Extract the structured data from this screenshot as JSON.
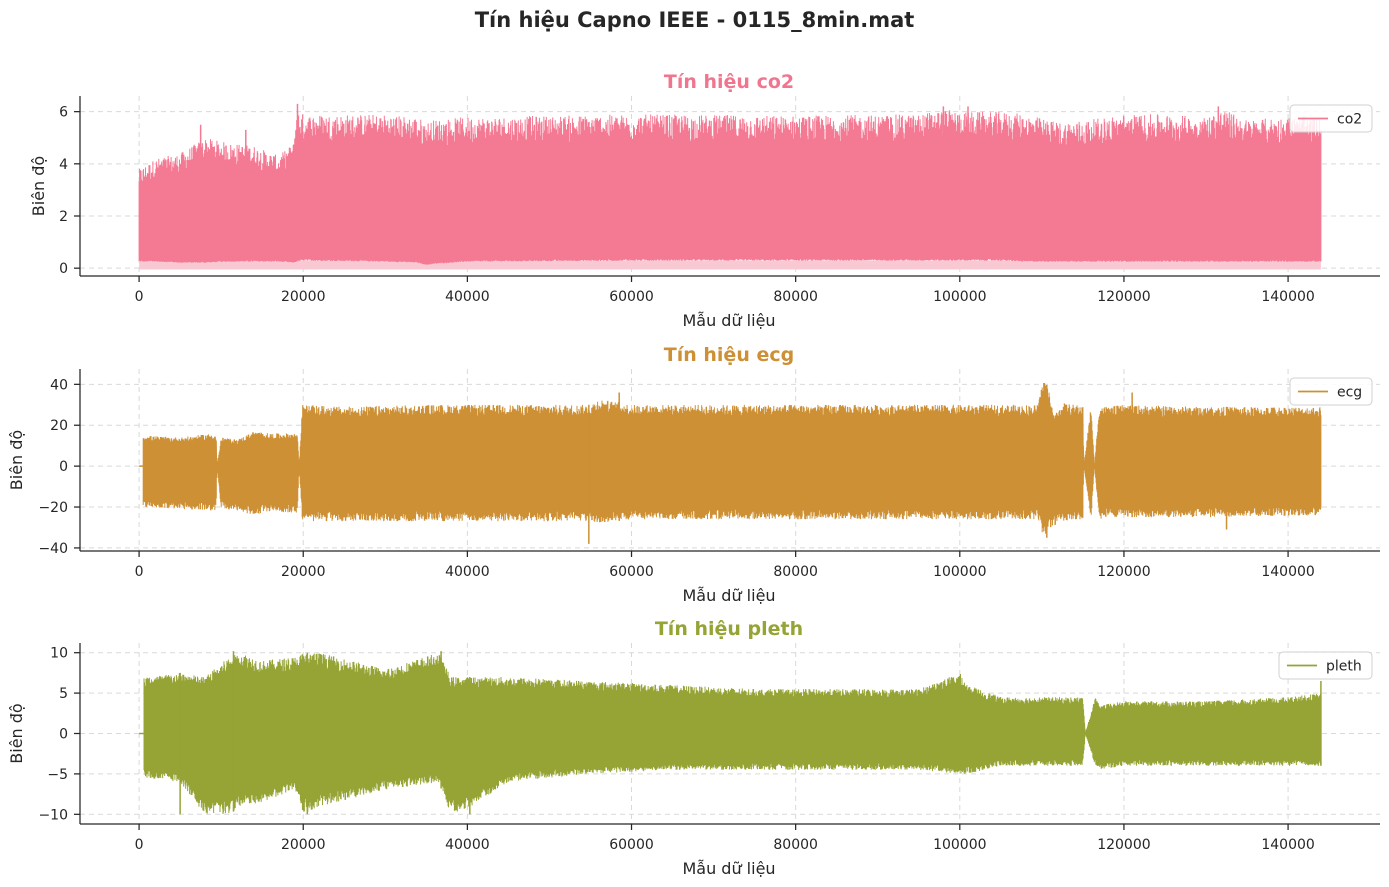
{
  "figure": {
    "title": "Tín hiệu Capno IEEE - 0115_8min.mat"
  },
  "chart_data": [
    {
      "type": "line",
      "title": "Tín hiệu co2",
      "xlabel": "Mẫu dữ liệu",
      "ylabel": "Biên độ",
      "legend": "co2",
      "legend_position": "top-right",
      "grid": true,
      "color": "#f47a94",
      "fill_color": "#f9c9d3",
      "xlim": [
        -7200,
        151200
      ],
      "ylim": [
        -0.3,
        6.6
      ],
      "xticks": [
        0,
        20000,
        40000,
        60000,
        80000,
        100000,
        120000,
        140000
      ],
      "yticks": [
        0,
        2,
        4,
        6
      ],
      "ytick_labels": [
        "0",
        "2",
        "4",
        "6"
      ],
      "x_range": [
        0,
        144000
      ],
      "envelope": {
        "x": [
          0,
          2000,
          5000,
          8000,
          11000,
          14000,
          17000,
          18800,
          19200,
          20000,
          30000,
          34000,
          35000,
          36000,
          40000,
          60000,
          80000,
          95000,
          98000,
          100000,
          105000,
          108000,
          112000,
          116000,
          120000,
          125000,
          130000,
          132000,
          135000,
          140000,
          144000
        ],
        "upper": [
          3.8,
          4.2,
          4.4,
          5.0,
          4.8,
          4.7,
          4.3,
          4.8,
          6.2,
          5.9,
          5.9,
          5.8,
          5.6,
          5.7,
          5.8,
          5.9,
          5.85,
          5.9,
          6.1,
          6.0,
          6.0,
          5.9,
          5.6,
          5.7,
          5.9,
          5.9,
          5.8,
          6.1,
          5.7,
          5.8,
          5.8
        ],
        "lower": [
          0.3,
          0.3,
          0.25,
          0.25,
          0.3,
          0.3,
          0.3,
          0.25,
          0.3,
          0.35,
          0.3,
          0.25,
          0.15,
          0.2,
          0.3,
          0.35,
          0.35,
          0.35,
          0.35,
          0.35,
          0.35,
          0.3,
          0.3,
          0.3,
          0.3,
          0.3,
          0.3,
          0.3,
          0.3,
          0.3,
          0.3
        ]
      },
      "spikes": [
        [
          19300,
          6.3
        ],
        [
          98000,
          6.2
        ],
        [
          101000,
          6.2
        ],
        [
          131500,
          6.2
        ],
        [
          7500,
          5.5
        ],
        [
          13000,
          5.3
        ]
      ]
    },
    {
      "type": "line",
      "title": "Tín hiệu ecg",
      "xlabel": "Mẫu dữ liệu",
      "ylabel": "Biên độ",
      "legend": "ecg",
      "legend_position": "top-right",
      "grid": true,
      "color": "#cd9035",
      "xlim": [
        -7200,
        151200
      ],
      "ylim": [
        -41.5,
        47.5
      ],
      "xticks": [
        0,
        20000,
        40000,
        60000,
        80000,
        100000,
        120000,
        140000
      ],
      "yticks": [
        -40,
        -20,
        0,
        20,
        40
      ],
      "ytick_labels": [
        "−40",
        "−20",
        "0",
        "20",
        "40"
      ],
      "x_range": [
        0,
        144000
      ],
      "flat_until": 500,
      "envelope": {
        "x": [
          500,
          5000,
          9000,
          9400,
          9500,
          10000,
          12000,
          14000,
          16000,
          19300,
          19500,
          19900,
          25000,
          35000,
          45000,
          55000,
          56000,
          60000,
          80000,
          100000,
          109500,
          110200,
          110800,
          111500,
          112500,
          114000,
          115000,
          115100,
          116000,
          116400,
          117000,
          118000,
          120000,
          130000,
          144000
        ],
        "upper": [
          15,
          14,
          16,
          15,
          0,
          14,
          13,
          17,
          16,
          16,
          0,
          30,
          29,
          30,
          30,
          30,
          33,
          30,
          30,
          30,
          30,
          43,
          38,
          25,
          31,
          30,
          30,
          0,
          30,
          0,
          30,
          29,
          30,
          29,
          29
        ],
        "lower": [
          -20,
          -21,
          -22,
          -21,
          0,
          -21,
          -22,
          -24,
          -22,
          -23,
          0,
          -27,
          -27,
          -27,
          -27,
          -27,
          -28,
          -26,
          -26,
          -26,
          -26,
          -35,
          -32,
          -29,
          -27,
          -26,
          -26,
          0,
          -26,
          0,
          -26,
          -25,
          -25,
          -25,
          -24
        ]
      },
      "spikes": [
        [
          54800,
          -38
        ],
        [
          58500,
          36
        ],
        [
          110600,
          -35
        ],
        [
          121000,
          36
        ],
        [
          132500,
          -31
        ]
      ]
    },
    {
      "type": "line",
      "title": "Tín hiệu pleth",
      "xlabel": "Mẫu dữ liệu",
      "ylabel": "Biên độ",
      "legend": "pleth",
      "legend_position": "top-right",
      "grid": true,
      "color": "#96a335",
      "xlim": [
        -7200,
        151200
      ],
      "ylim": [
        -11.2,
        11.2
      ],
      "xticks": [
        0,
        20000,
        40000,
        60000,
        80000,
        100000,
        120000,
        140000
      ],
      "yticks": [
        -10,
        -5,
        0,
        5,
        10
      ],
      "ytick_labels": [
        "−10",
        "−5",
        "0",
        "5",
        "10"
      ],
      "x_range": [
        0,
        144000
      ],
      "flat_until": 600,
      "envelope": {
        "x": [
          600,
          5000,
          8000,
          11000,
          12500,
          15000,
          19000,
          20000,
          22000,
          30000,
          36500,
          38000,
          40500,
          45000,
          55000,
          65000,
          75000,
          85000,
          95000,
          100000,
          101000,
          105000,
          110000,
          115000,
          115300,
          116500,
          117000,
          120000,
          130000,
          140000,
          144000
        ],
        "upper": [
          7,
          7.5,
          7,
          9.5,
          10,
          9,
          9.5,
          10,
          10,
          8,
          10,
          7,
          7,
          7,
          6.5,
          6,
          5.5,
          5.5,
          5.5,
          7.5,
          6,
          4.5,
          4.5,
          4.5,
          0,
          4.5,
          3.5,
          4,
          4,
          4.5,
          5
        ],
        "lower": [
          -5.5,
          -6,
          -10,
          -10,
          -9,
          -8.5,
          -7,
          -10,
          -9,
          -7,
          -6,
          -10,
          -9,
          -6,
          -5,
          -4.5,
          -4.5,
          -4.5,
          -4.5,
          -5,
          -5,
          -4,
          -4,
          -4,
          0,
          -4,
          -4.5,
          -4,
          -4,
          -4,
          -4
        ]
      },
      "spikes": [
        [
          5000,
          -10
        ],
        [
          11500,
          10.2
        ],
        [
          20500,
          -10
        ],
        [
          36800,
          10.2
        ],
        [
          40300,
          -10
        ],
        [
          144000,
          6.5
        ]
      ]
    }
  ]
}
